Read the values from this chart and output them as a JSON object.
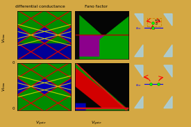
{
  "bg_color": "#d4a843",
  "title_diff": "differential conductance",
  "title_fano": "Fano factor",
  "well_color": "#a8cfe0",
  "arrow_color": "#CC0000",
  "dot_color": "#228B22",
  "text_color_blue": "#2222CC"
}
